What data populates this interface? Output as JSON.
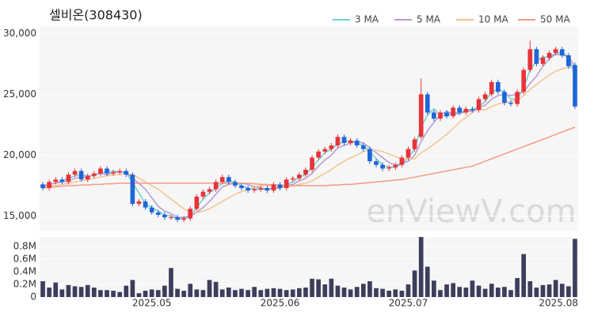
{
  "chart_data": {
    "type": "candlestick",
    "title": "셀비온(308430)",
    "watermark": "enViewV.com",
    "legend": "top-right",
    "up_color": "#e8333a",
    "down_color": "#1f66d8",
    "categories": [
      null,
      null,
      null,
      null,
      null,
      null,
      null,
      null,
      null,
      null,
      null,
      null,
      null,
      null,
      null,
      null,
      null,
      "2025.05",
      null,
      null,
      null,
      null,
      null,
      null,
      null,
      null,
      null,
      null,
      null,
      null,
      null,
      null,
      null,
      null,
      null,
      null,
      null,
      "2025.06",
      null,
      null,
      null,
      null,
      null,
      null,
      null,
      null,
      null,
      null,
      null,
      null,
      null,
      null,
      null,
      null,
      null,
      null,
      null,
      "2025.07",
      null,
      null,
      null,
      null,
      null,
      null,
      null,
      null,
      null,
      null,
      null,
      null,
      null,
      null,
      null,
      null,
      null,
      null,
      null,
      null,
      null,
      null,
      null,
      null,
      null,
      "2025.08"
    ],
    "open": [
      17600,
      17300,
      17800,
      18000,
      17800,
      18400,
      18700,
      18000,
      18300,
      18500,
      18900,
      18500,
      18600,
      18700,
      18400,
      16000,
      16200,
      15700,
      15300,
      15100,
      14900,
      14900,
      14700,
      14800,
      15600,
      16600,
      17000,
      17200,
      17800,
      18200,
      17800,
      17500,
      17300,
      17100,
      17200,
      17300,
      17100,
      17600,
      17300,
      18000,
      18100,
      18400,
      18800,
      19800,
      20300,
      20500,
      20800,
      21500,
      21000,
      21200,
      20800,
      20500,
      19500,
      19200,
      18900,
      19000,
      19200,
      19800,
      20500,
      21500,
      25000,
      23500,
      23000,
      23500,
      23200,
      23900,
      23500,
      23800,
      23700,
      24600,
      25000,
      26000,
      25200,
      24300,
      24200,
      25200,
      27000,
      28700,
      27500,
      28000,
      28400,
      28700,
      28200,
      27400
    ],
    "high": [
      17800,
      18000,
      18200,
      18200,
      18600,
      18900,
      18900,
      18500,
      18700,
      19100,
      19100,
      18800,
      18900,
      18900,
      18600,
      16400,
      16400,
      15900,
      15500,
      15300,
      15100,
      15100,
      15000,
      15800,
      16800,
      17200,
      17400,
      18000,
      18400,
      18400,
      18000,
      17700,
      17500,
      17400,
      17500,
      17500,
      17800,
      17800,
      18200,
      18300,
      18600,
      19000,
      20000,
      20500,
      20700,
      21000,
      21700,
      21700,
      21400,
      21400,
      21000,
      20700,
      19700,
      19400,
      19200,
      19400,
      20000,
      20700,
      21500,
      26300,
      25200,
      23700,
      23700,
      23700,
      24100,
      24100,
      24000,
      24000,
      24800,
      25200,
      26200,
      26200,
      25400,
      24500,
      25400,
      27200,
      29400,
      28900,
      28200,
      28600,
      28900,
      28900,
      28400,
      27600
    ],
    "low": [
      17100,
      17100,
      17600,
      17600,
      17600,
      18200,
      17800,
      17800,
      18100,
      18300,
      18300,
      18300,
      18400,
      18200,
      15800,
      15800,
      15500,
      15100,
      14900,
      14700,
      14700,
      14500,
      14500,
      14600,
      15400,
      16400,
      16800,
      17000,
      17600,
      17600,
      17300,
      17100,
      16900,
      16900,
      17000,
      16900,
      16900,
      17100,
      17100,
      17800,
      17900,
      18200,
      18600,
      19600,
      20100,
      20300,
      20600,
      20800,
      20800,
      20600,
      20300,
      19300,
      19000,
      18700,
      18700,
      18800,
      19000,
      19600,
      20300,
      21300,
      23300,
      22800,
      22800,
      23000,
      23000,
      23300,
      23300,
      23500,
      23500,
      24400,
      24800,
      25000,
      24100,
      24000,
      24000,
      25000,
      26800,
      27300,
      27300,
      27800,
      28200,
      28000,
      27100,
      23800
    ],
    "close": [
      17300,
      17800,
      18000,
      17800,
      18400,
      18700,
      18000,
      18300,
      18500,
      18900,
      18500,
      18600,
      18700,
      18400,
      16000,
      16200,
      15700,
      15300,
      15100,
      14900,
      14900,
      14700,
      14800,
      15600,
      16600,
      17000,
      17200,
      17800,
      18200,
      17800,
      17500,
      17300,
      17100,
      17200,
      17300,
      17100,
      17600,
      17300,
      18000,
      18100,
      18400,
      18800,
      19800,
      20300,
      20500,
      20800,
      21500,
      21000,
      21200,
      20800,
      20500,
      19500,
      19200,
      18900,
      19000,
      19200,
      19800,
      20500,
      21300,
      25000,
      23500,
      23000,
      23500,
      23200,
      23900,
      23500,
      23800,
      23700,
      24600,
      25000,
      26000,
      25200,
      24300,
      24200,
      25200,
      27000,
      28700,
      27500,
      28000,
      28400,
      28700,
      28200,
      27300,
      24000
    ],
    "series": [
      {
        "name": "3 MA",
        "color": "#6fd0cf",
        "values": [
          17400,
          17600,
          17700,
          17900,
          18100,
          18300,
          18400,
          18300,
          18300,
          18600,
          18600,
          18700,
          18600,
          18600,
          17700,
          16900,
          16000,
          15700,
          15400,
          15100,
          15000,
          14800,
          14800,
          15000,
          15700,
          16400,
          16900,
          17300,
          17700,
          17900,
          17800,
          17500,
          17300,
          17200,
          17200,
          17200,
          17300,
          17300,
          17600,
          17800,
          18200,
          18400,
          19000,
          19600,
          20200,
          20500,
          20900,
          21100,
          21200,
          21000,
          20800,
          20300,
          19700,
          19200,
          19000,
          19000,
          19300,
          19800,
          20500,
          22300,
          23300,
          23800,
          23300,
          23200,
          23500,
          23500,
          23700,
          23700,
          24000,
          24400,
          25200,
          25400,
          25200,
          24600,
          24600,
          25500,
          27000,
          27700,
          28100,
          28000,
          28400,
          28400,
          28100,
          26500
        ]
      },
      {
        "name": "5 MA",
        "color": "#b599d3",
        "values": [
          17500,
          17600,
          17700,
          17800,
          17900,
          18100,
          18200,
          18200,
          18400,
          18500,
          18400,
          18600,
          18600,
          18600,
          18100,
          17700,
          17200,
          16500,
          15800,
          15400,
          15200,
          14900,
          14900,
          15000,
          15300,
          15700,
          16200,
          16800,
          17400,
          17600,
          17700,
          17700,
          17600,
          17400,
          17300,
          17200,
          17300,
          17300,
          17500,
          17600,
          17900,
          18100,
          18500,
          19100,
          19600,
          20000,
          20600,
          20800,
          21000,
          21100,
          21000,
          20600,
          20200,
          19800,
          19400,
          19200,
          19300,
          19500,
          20000,
          21100,
          22000,
          22700,
          23300,
          23600,
          23400,
          23400,
          23600,
          23600,
          23900,
          24100,
          24600,
          24900,
          25000,
          24900,
          25000,
          25200,
          25900,
          26500,
          27300,
          27900,
          28300,
          28200,
          28100,
          27300
        ]
      },
      {
        "name": "10 MA",
        "color": "#f3c38f",
        "values": [
          17400,
          17500,
          17500,
          17600,
          17700,
          17800,
          17900,
          18000,
          18100,
          18200,
          18300,
          18400,
          18400,
          18500,
          18400,
          18100,
          17800,
          17500,
          17200,
          16800,
          16400,
          16000,
          15600,
          15300,
          15300,
          15400,
          15600,
          15900,
          16200,
          16500,
          16800,
          17000,
          17200,
          17400,
          17500,
          17500,
          17500,
          17400,
          17400,
          17500,
          17600,
          17700,
          17900,
          18200,
          18500,
          18800,
          19200,
          19500,
          19800,
          20000,
          20300,
          20400,
          20400,
          20300,
          20100,
          19900,
          19700,
          19700,
          19700,
          20200,
          20500,
          20900,
          21300,
          21700,
          22200,
          22700,
          23100,
          23500,
          23800,
          23700,
          24000,
          24200,
          24300,
          24400,
          24500,
          24900,
          25400,
          25800,
          26200,
          26600,
          26900,
          27100,
          27200,
          27200
        ]
      },
      {
        "name": "50 MA",
        "color": "#f59b83",
        "values": [
          17300,
          17350,
          17400,
          17450,
          17500,
          17500,
          17550,
          17550,
          17600,
          17600,
          17650,
          17650,
          17700,
          17700,
          17700,
          17700,
          17700,
          17700,
          17700,
          17700,
          17700,
          17700,
          17700,
          17700,
          17700,
          17700,
          17700,
          17700,
          17700,
          17700,
          17700,
          17700,
          17700,
          17650,
          17600,
          17600,
          17550,
          17550,
          17500,
          17500,
          17500,
          17500,
          17500,
          17500,
          17500,
          17550,
          17550,
          17600,
          17600,
          17650,
          17700,
          17750,
          17800,
          17850,
          17900,
          17950,
          18000,
          18100,
          18200,
          18300,
          18400,
          18500,
          18600,
          18700,
          18800,
          18900,
          19000,
          19100,
          19300,
          19500,
          19700,
          19900,
          20100,
          20300,
          20500,
          20700,
          20900,
          21100,
          21300,
          21500,
          21700,
          21900,
          22100,
          22300
        ]
      }
    ],
    "ylim": [
      13800,
      30600
    ],
    "yticks": [
      {
        "value": 15000,
        "label": "15,000"
      },
      {
        "value": 20000,
        "label": "20,000"
      },
      {
        "value": 25000,
        "label": "25,000"
      },
      {
        "value": 30000,
        "label": "30,000"
      }
    ],
    "grid": true,
    "volume": {
      "color": "#3d3d5c",
      "values": [
        250000,
        150000,
        230000,
        120000,
        190000,
        170000,
        160000,
        190000,
        150000,
        110000,
        110000,
        100000,
        80000,
        180000,
        270000,
        60000,
        100000,
        120000,
        110000,
        180000,
        460000,
        130000,
        100000,
        210000,
        120000,
        110000,
        270000,
        240000,
        120000,
        150000,
        110000,
        130000,
        110000,
        160000,
        110000,
        130000,
        140000,
        130000,
        110000,
        120000,
        140000,
        150000,
        290000,
        280000,
        200000,
        290000,
        180000,
        150000,
        120000,
        160000,
        210000,
        250000,
        140000,
        130000,
        100000,
        120000,
        100000,
        200000,
        420000,
        950000,
        480000,
        260000,
        110000,
        200000,
        220000,
        160000,
        150000,
        260000,
        180000,
        130000,
        210000,
        150000,
        160000,
        110000,
        300000,
        680000,
        250000,
        150000,
        190000,
        200000,
        270000,
        210000,
        170000,
        920000
      ],
      "ylim": [
        0,
        950000
      ],
      "yticks": [
        0,
        {
          "value": 200000,
          "label": "0.2M"
        },
        {
          "value": 400000,
          "label": "0.4M"
        },
        {
          "value": 600000,
          "label": "0.6M"
        },
        {
          "value": 800000,
          "label": "0.8M"
        }
      ]
    }
  }
}
